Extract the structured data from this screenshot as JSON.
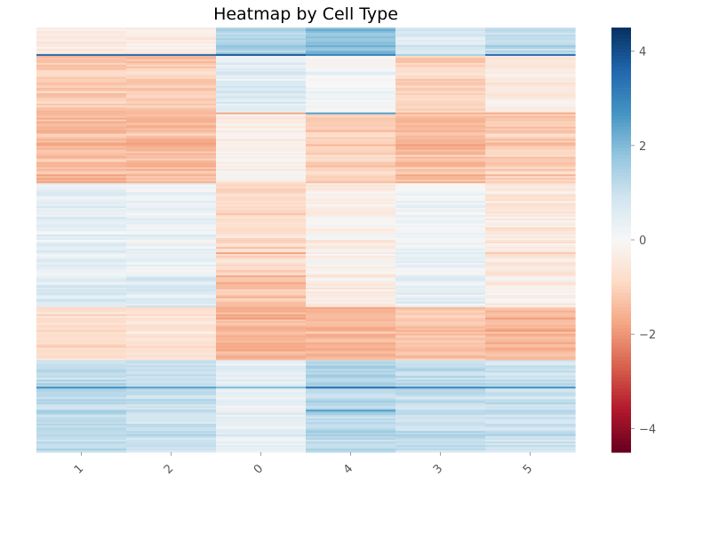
{
  "chart_data": {
    "type": "heatmap",
    "title": "Heatmap by Cell Type",
    "xlabel": "",
    "ylabel": "",
    "columns": [
      "1",
      "2",
      "0",
      "4",
      "3",
      "5"
    ],
    "colormap": "RdBu",
    "colorbar": {
      "min": -4.5,
      "max": 4.5,
      "ticks": [
        -4,
        -2,
        0,
        2,
        4
      ],
      "tick_labels": [
        "−4",
        "−2",
        "0",
        "2",
        "4"
      ]
    },
    "n_rows": 240,
    "row_blocks": [
      {
        "rows": [
          0,
          16
        ],
        "values": [
          -0.4,
          -0.3,
          1.5,
          1.9,
          0.7,
          1.3
        ]
      },
      {
        "rows": [
          16,
          48
        ],
        "values": [
          -1.1,
          -1.1,
          0.6,
          0.1,
          -0.9,
          -0.4
        ]
      },
      {
        "rows": [
          48,
          88
        ],
        "values": [
          -1.4,
          -1.4,
          -0.2,
          -1.0,
          -1.4,
          -1.1
        ]
      },
      {
        "rows": [
          88,
          140
        ],
        "values": [
          0.4,
          0.3,
          -0.9,
          -0.2,
          0.2,
          -0.5
        ]
      },
      {
        "rows": [
          140,
          158
        ],
        "values": [
          0.6,
          0.7,
          -1.3,
          -0.4,
          0.5,
          -0.3
        ]
      },
      {
        "rows": [
          158,
          188
        ],
        "values": [
          -0.8,
          -0.6,
          -1.5,
          -1.5,
          -1.2,
          -1.4
        ]
      },
      {
        "rows": [
          188,
          240
        ],
        "values": [
          1.2,
          1.0,
          0.5,
          1.3,
          1.1,
          1.0
        ]
      }
    ],
    "accent_rows": [
      {
        "row": 15,
        "values": [
          3.5,
          3.5,
          3.8,
          3.0,
          1.5,
          3.5
        ]
      },
      {
        "row": 48,
        "values": [
          -1.5,
          -1.5,
          -1.8,
          2.5,
          -1.6,
          -1.7
        ]
      },
      {
        "row": 127,
        "values": [
          0.5,
          0.4,
          -1.8,
          -0.5,
          0.6,
          -1.2
        ]
      },
      {
        "row": 160,
        "values": [
          -0.8,
          -0.6,
          -1.7,
          -1.6,
          -1.0,
          -1.6
        ]
      },
      {
        "row": 203,
        "values": [
          2.8,
          2.5,
          2.0,
          3.5,
          3.0,
          2.8
        ]
      },
      {
        "row": 216,
        "values": [
          1.5,
          1.3,
          -0.3,
          2.5,
          1.2,
          1.3
        ]
      }
    ],
    "grid": false,
    "legend": "colorbar-right"
  }
}
